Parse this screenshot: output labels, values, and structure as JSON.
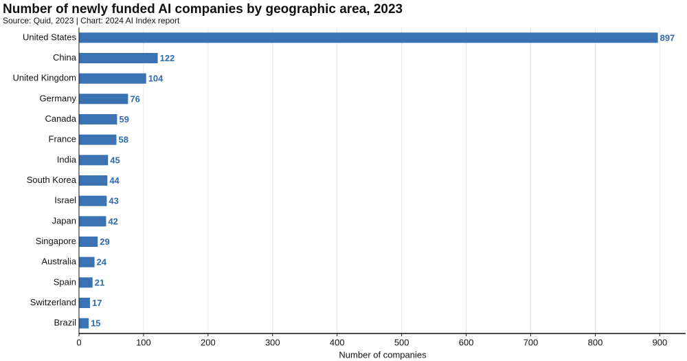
{
  "chart_data": {
    "type": "hbar",
    "title": "Number of newly funded AI companies by geographic area, 2023",
    "subtitle": "Source: Quid, 2023 | Chart: 2024 AI Index report",
    "x_label": "Number of companies",
    "categories": [
      "United States",
      "China",
      "United Kingdom",
      "Germany",
      "Canada",
      "France",
      "India",
      "South Korea",
      "Israel",
      "Japan",
      "Singapore",
      "Australia",
      "Spain",
      "Switzerland",
      "Brazil"
    ],
    "values": [
      897,
      122,
      104,
      76,
      59,
      58,
      45,
      44,
      43,
      42,
      29,
      24,
      21,
      17,
      15
    ],
    "color": "#3b72b4",
    "label_color": "#2f6bb0",
    "xlim": [
      0,
      940
    ],
    "xticks": [
      0,
      100,
      200,
      300,
      400,
      500,
      600,
      700,
      800,
      900
    ],
    "grid": true
  }
}
